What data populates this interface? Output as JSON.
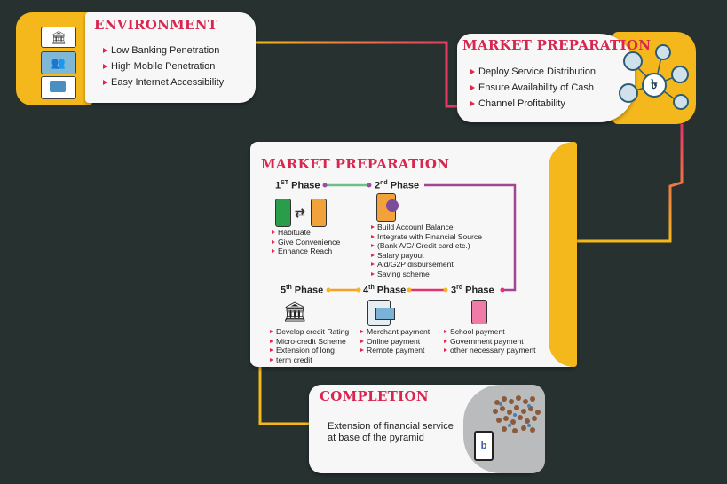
{
  "environment": {
    "title": "ENVIRONMENT",
    "items": [
      "Low Banking Penetration",
      "High Mobile  Penetration",
      "Easy Internet Accessibility"
    ]
  },
  "market_top": {
    "title": "MARKET  PREPARATION",
    "items": [
      "Deploy Service Distribution",
      "Ensure Availability of Cash",
      "Channel Profitability"
    ],
    "hub_symbol": "৳"
  },
  "market_main": {
    "title": "MARKET  PREPARATION",
    "phase1": {
      "num": "1",
      "sup": "ST",
      "label": " Phase",
      "items": [
        "Habituate",
        "Give Convenience",
        "Enhance Reach"
      ]
    },
    "phase2": {
      "num": "2",
      "sup": "nd",
      "label": " Phase",
      "items": [
        "Build Account Balance",
        "Integrate with Financial Source",
        "(Bank A/C/ Credit card etc.)",
        "Salary payout",
        "Aid/G2P disbursement",
        "Saving scheme"
      ]
    },
    "phase3": {
      "num": "3",
      "sup": "rd",
      "label": " Phase",
      "items": [
        "School payment",
        "Government payment",
        "other necessary payment"
      ]
    },
    "phase4": {
      "num": "4",
      "sup": "th",
      "label": " Phase",
      "items": [
        "Merchant payment",
        "Online payment",
        "Remote payment"
      ]
    },
    "phase5": {
      "num": "5",
      "sup": "th",
      "label": " Phase",
      "items": [
        "Develop credit Rating",
        "Micro-credit Scheme",
        "Extension of long",
        "term credit"
      ]
    }
  },
  "completion": {
    "title": "COMPLETION",
    "line1": "Extension of financial service",
    "line2": "at base of the pyramid",
    "phone_symbol": "b"
  },
  "colors": {
    "background": "#263130",
    "accent_yellow": "#f5b81c",
    "title_red": "#d8264f",
    "connector_pink": "#e5326a"
  }
}
